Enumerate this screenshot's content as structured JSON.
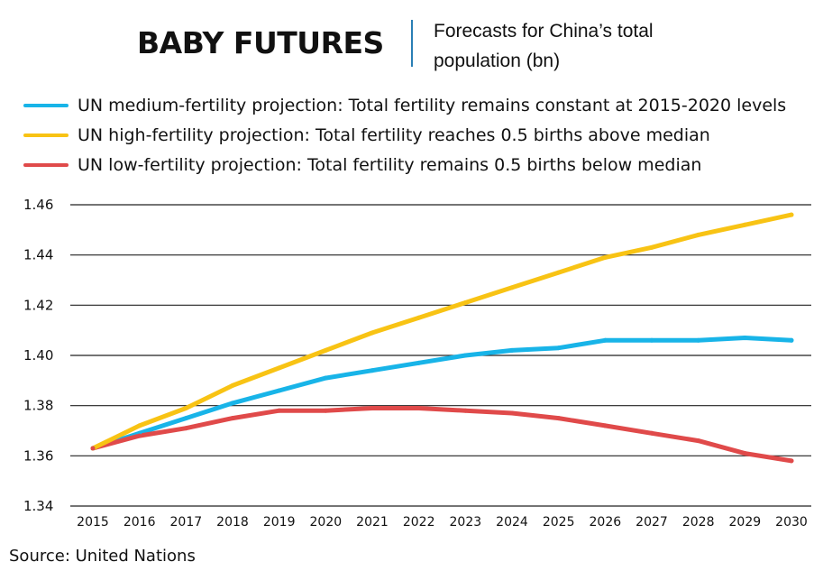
{
  "header": {
    "title": "BABY FUTURES",
    "subtitle": "Forecasts for China’s total population (bn)"
  },
  "source": "Source: United Nations",
  "chart_data": {
    "type": "line",
    "title": "BABY FUTURES",
    "subtitle": "Forecasts for China’s total population (bn)",
    "xlabel": "",
    "ylabel": "",
    "ylim": [
      1.34,
      1.46
    ],
    "yticks": [
      "1.34",
      "1.36",
      "1.38",
      "1.40",
      "1.42",
      "1.44",
      "1.46"
    ],
    "grid": true,
    "legend_position": "top",
    "categories": [
      "2015",
      "2016",
      "2017",
      "2018",
      "2019",
      "2020",
      "2021",
      "2022",
      "2023",
      "2024",
      "2025",
      "2026",
      "2027",
      "2028",
      "2029",
      "2030"
    ],
    "series": [
      {
        "name": "UN medium-fertility projection: Total fertility remains constant at 2015-2020 levels",
        "color": "#18b4e8",
        "values": [
          1.363,
          1.369,
          1.375,
          1.381,
          1.386,
          1.391,
          1.394,
          1.397,
          1.4,
          1.402,
          1.403,
          1.406,
          1.406,
          1.406,
          1.407,
          1.406
        ]
      },
      {
        "name": "UN high-fertility projection: Total fertility reaches 0.5 births above median",
        "color": "#f8c314",
        "values": [
          1.363,
          1.372,
          1.379,
          1.388,
          1.395,
          1.402,
          1.409,
          1.415,
          1.421,
          1.427,
          1.433,
          1.439,
          1.443,
          1.448,
          1.452,
          1.456
        ]
      },
      {
        "name": "UN low-fertility projection: Total fertility remains 0.5 births below median",
        "color": "#e04a4a",
        "values": [
          1.363,
          1.368,
          1.371,
          1.375,
          1.378,
          1.378,
          1.379,
          1.379,
          1.378,
          1.377,
          1.375,
          1.372,
          1.369,
          1.366,
          1.361,
          1.358
        ]
      }
    ]
  }
}
